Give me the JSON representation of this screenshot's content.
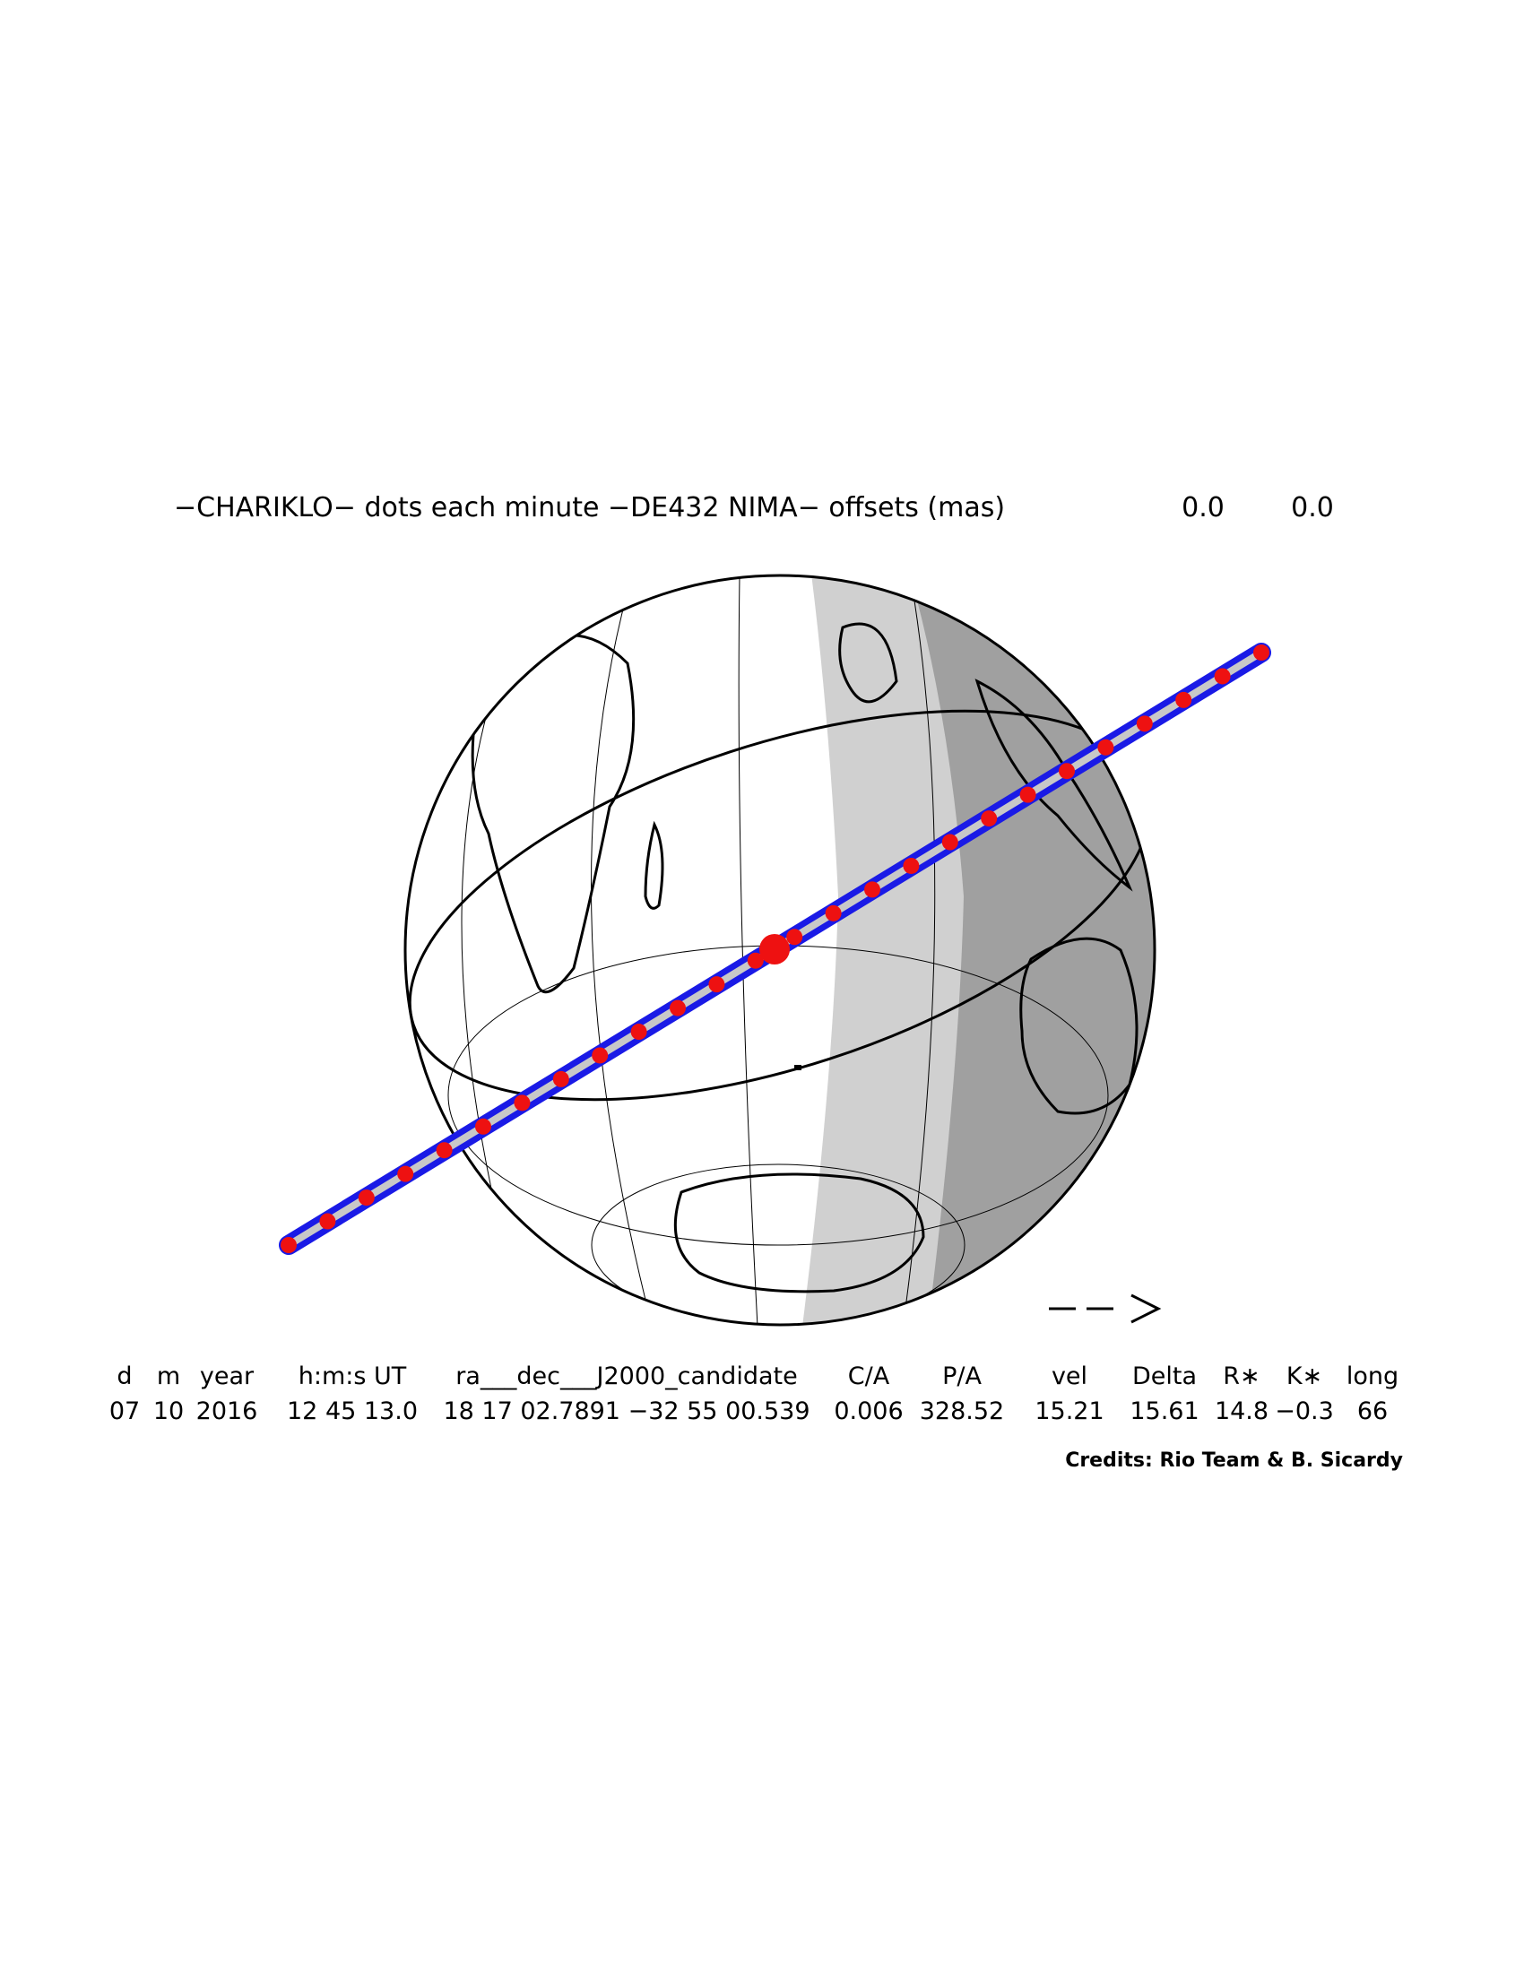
{
  "title": {
    "text": "−CHARIKLO− dots each minute −DE432 NIMA− offsets (mas)",
    "offsets": [
      "0.0",
      "0.0"
    ]
  },
  "table": {
    "headers": [
      "d",
      "m",
      "year",
      "h:m:s UT",
      "ra___dec___J2000_candidate",
      "C/A",
      "P/A",
      "vel",
      "Delta",
      "R∗",
      "K∗",
      "long"
    ],
    "values": [
      "07",
      "10",
      "2016",
      "12 45 13.0",
      "18 17 02.7891 −32 55 00.539",
      "0.006",
      "328.52",
      "15.21",
      "15.61",
      "14.8",
      "−0.3",
      "66"
    ]
  },
  "credits": "Credits: Rio Team & B. Sicardy"
}
